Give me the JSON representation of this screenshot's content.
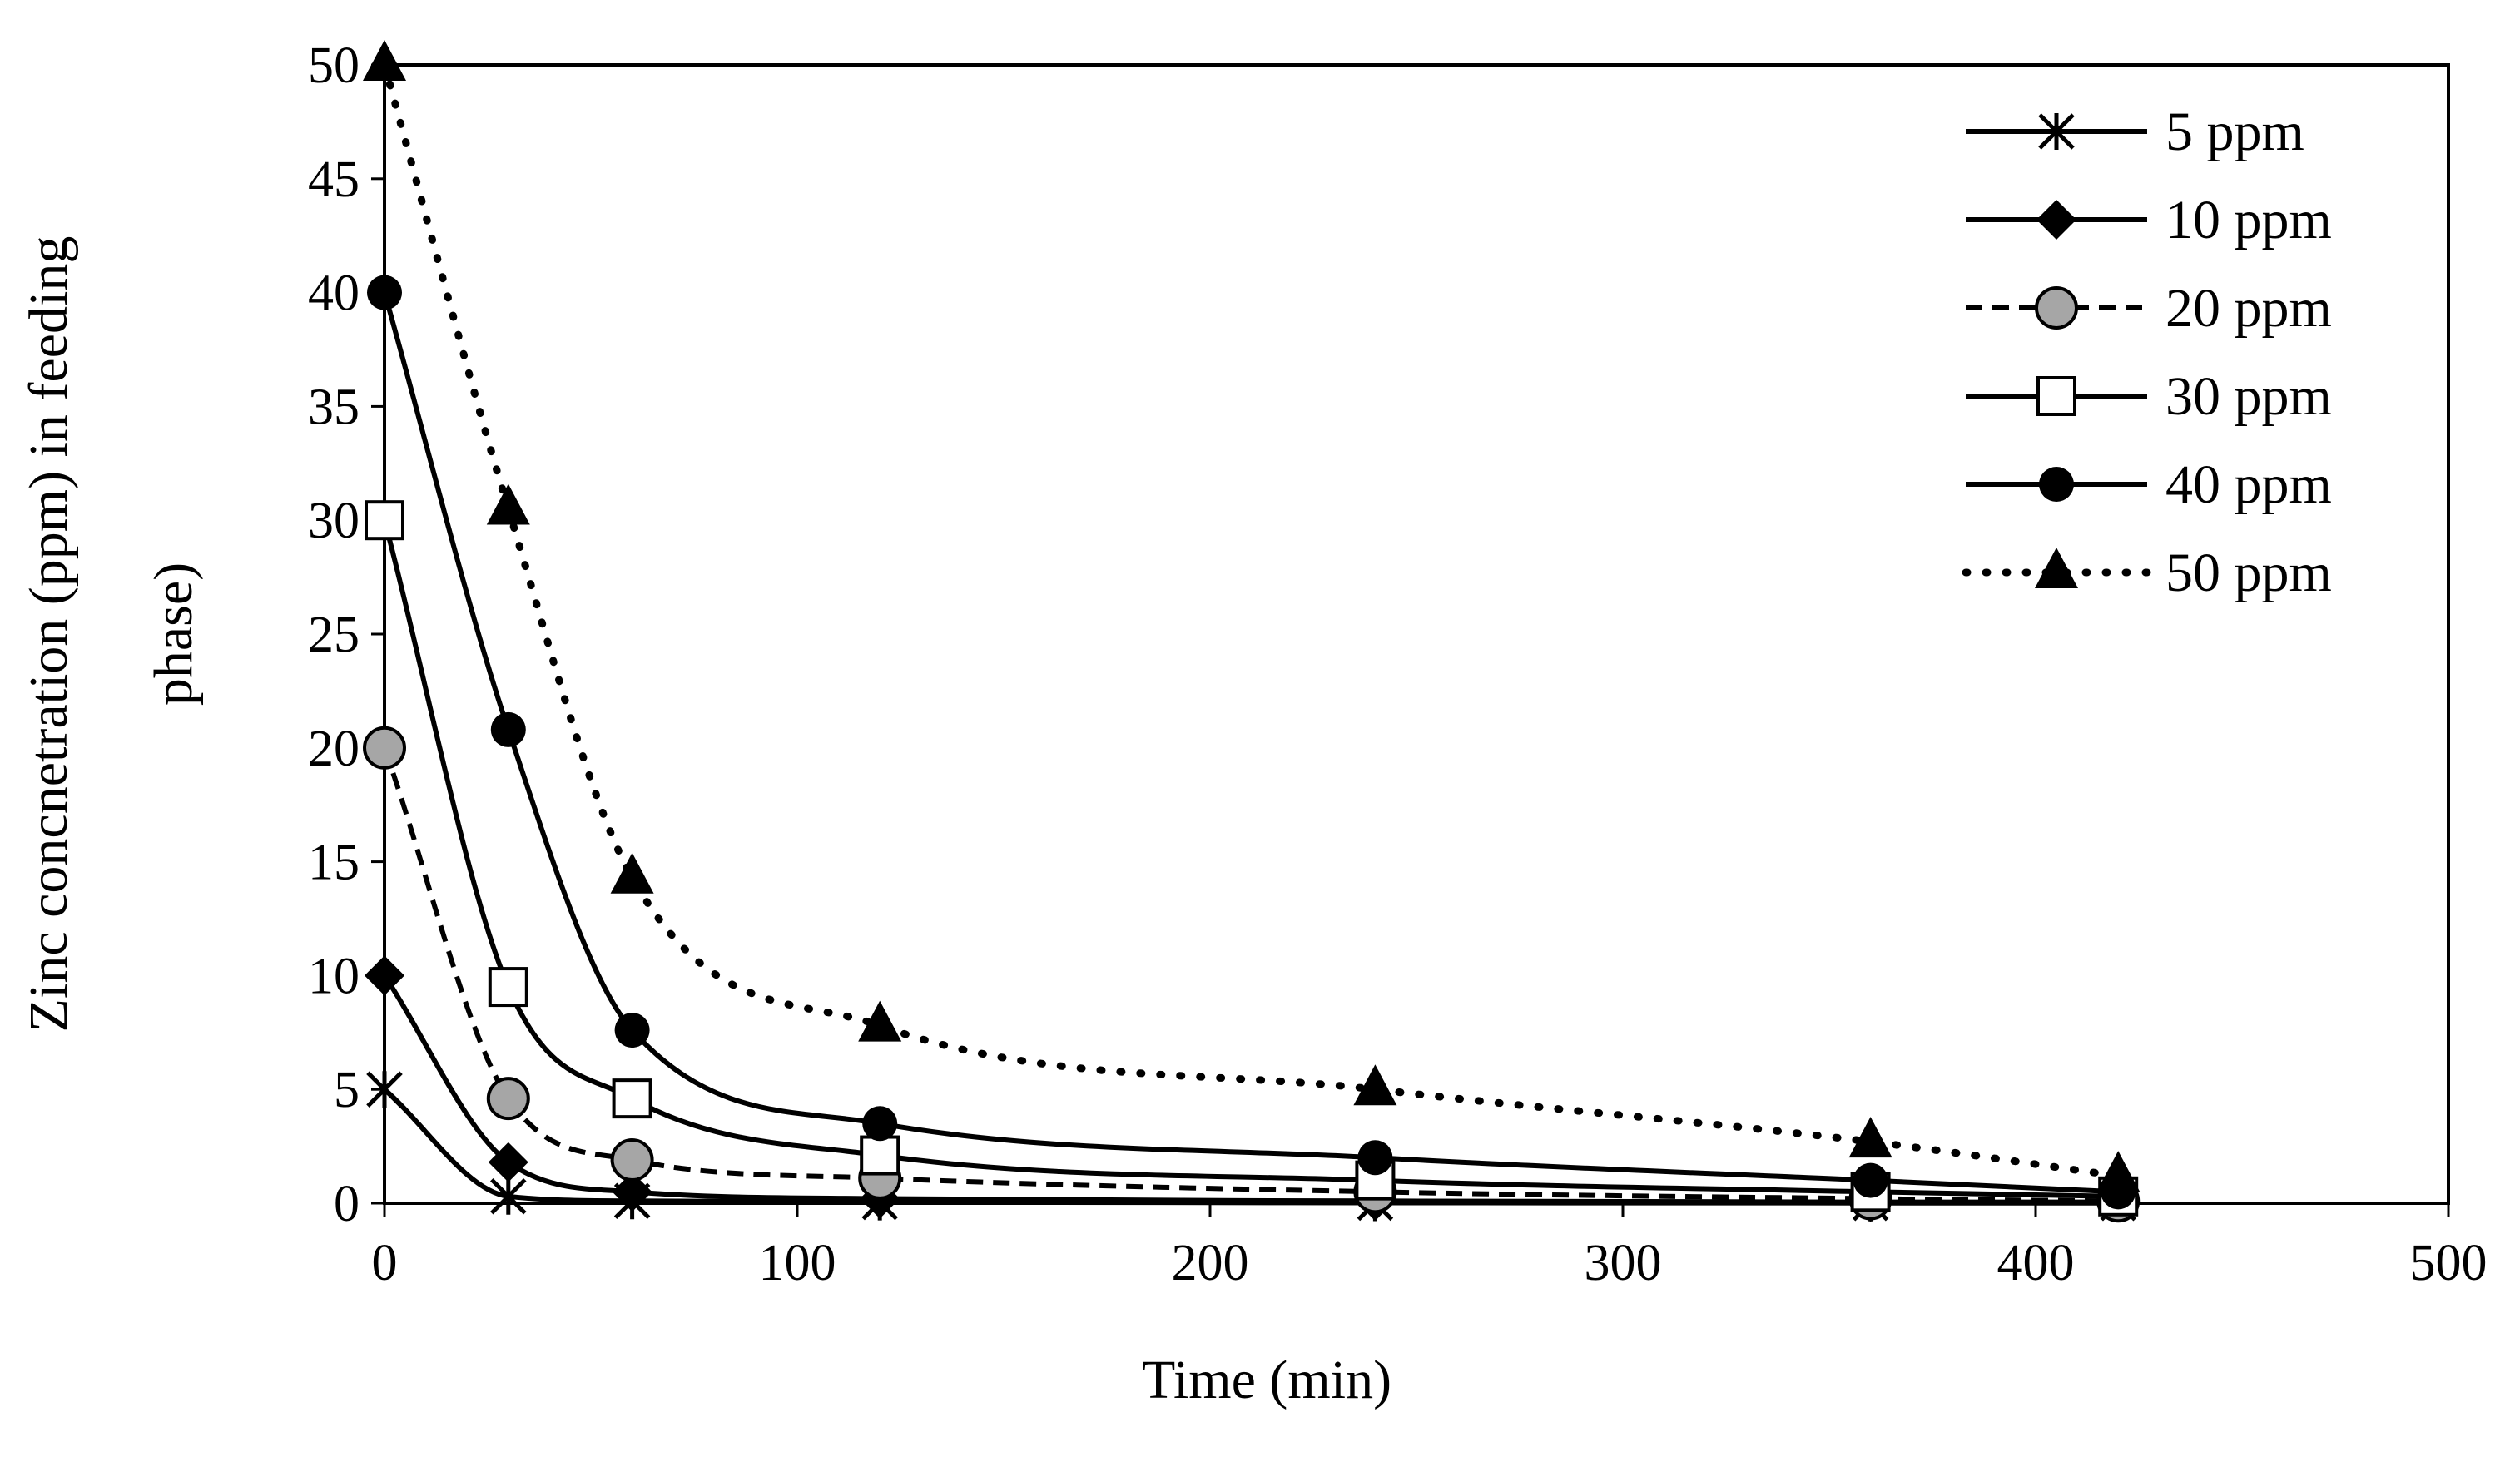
{
  "chart_data": {
    "type": "line",
    "title": "",
    "xlabel": "Time (min)",
    "ylabel_lines": [
      "Zinc concnetration (ppm) in feeding",
      "phase)"
    ],
    "xlim": [
      0,
      500
    ],
    "ylim": [
      0,
      50
    ],
    "xticks": [
      0,
      100,
      200,
      300,
      400,
      500
    ],
    "yticks": [
      0,
      5,
      10,
      15,
      20,
      25,
      30,
      35,
      40,
      45,
      50
    ],
    "grid": false,
    "legend_position": "top-right",
    "x": [
      0,
      30,
      60,
      120,
      240,
      360,
      420
    ],
    "series": [
      {
        "name": "5 ppm",
        "marker": "star",
        "line": "solid",
        "values": [
          5,
          0.3,
          0.1,
          0.05,
          0.02,
          0.01,
          0.01
        ]
      },
      {
        "name": "10 ppm",
        "marker": "diamond",
        "line": "solid",
        "values": [
          10,
          1.8,
          0.5,
          0.2,
          0.1,
          0.05,
          0.05
        ]
      },
      {
        "name": "20 ppm",
        "marker": "circle-gray",
        "line": "dashed",
        "values": [
          20,
          4.6,
          1.9,
          1.1,
          0.5,
          0.2,
          0.1
        ]
      },
      {
        "name": "30 ppm",
        "marker": "square",
        "line": "solid",
        "values": [
          30,
          9.5,
          4.6,
          2.1,
          1.0,
          0.5,
          0.3
        ]
      },
      {
        "name": "40 ppm",
        "marker": "circle",
        "line": "solid",
        "values": [
          40,
          20.8,
          7.6,
          3.5,
          2.0,
          1.0,
          0.5
        ]
      },
      {
        "name": "50 ppm",
        "marker": "triangle",
        "line": "dotted",
        "values": [
          50,
          30.5,
          14.3,
          7.8,
          5.0,
          2.7,
          1.2
        ]
      }
    ]
  }
}
